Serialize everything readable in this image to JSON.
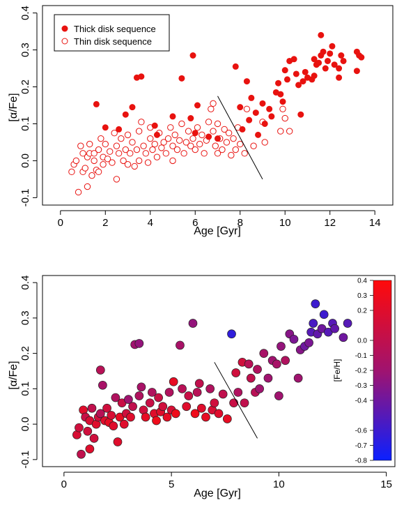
{
  "chart_data": [
    {
      "type": "scatter",
      "xlabel": "Age [Gyr]",
      "ylabel": "[α/Fe]",
      "xlim": [
        -0.8,
        14.8
      ],
      "ylim": [
        -0.12,
        0.42
      ],
      "xticks": [
        0,
        2,
        4,
        6,
        8,
        10,
        12,
        14
      ],
      "yticks": [
        -0.1,
        0.0,
        0.1,
        0.2,
        0.3,
        0.4
      ],
      "legend": {
        "placement": "top-left",
        "entries": [
          "Thick disk sequence",
          "Thin disk sequence"
        ]
      },
      "divider_line": {
        "x": [
          7.0,
          9.0
        ],
        "y": [
          0.175,
          -0.05
        ]
      },
      "series": [
        {
          "name": "Thick disk sequence",
          "marker": "filled-circle",
          "color": "#e8120f",
          "points": [
            [
              1.6,
              0.153
            ],
            [
              2.0,
              0.09
            ],
            [
              2.6,
              0.085
            ],
            [
              2.9,
              0.125
            ],
            [
              3.2,
              0.145
            ],
            [
              3.4,
              0.225
            ],
            [
              3.6,
              0.228
            ],
            [
              4.2,
              0.095
            ],
            [
              4.3,
              0.07
            ],
            [
              5.0,
              0.12
            ],
            [
              5.4,
              0.223
            ],
            [
              5.9,
              0.285
            ],
            [
              5.8,
              0.115
            ],
            [
              6.0,
              0.075
            ],
            [
              6.1,
              0.15
            ],
            [
              6.6,
              0.065
            ],
            [
              7.0,
              0.06
            ],
            [
              7.8,
              0.255
            ],
            [
              8.0,
              0.145
            ],
            [
              8.1,
              0.085
            ],
            [
              8.3,
              0.215
            ],
            [
              8.4,
              0.11
            ],
            [
              8.5,
              0.17
            ],
            [
              8.7,
              0.13
            ],
            [
              8.8,
              0.07
            ],
            [
              9.0,
              0.155
            ],
            [
              9.1,
              0.1
            ],
            [
              9.3,
              0.14
            ],
            [
              9.4,
              0.12
            ],
            [
              9.6,
              0.185
            ],
            [
              9.8,
              0.18
            ],
            [
              9.7,
              0.21
            ],
            [
              9.9,
              0.16
            ],
            [
              10.0,
              0.245
            ],
            [
              10.1,
              0.22
            ],
            [
              10.2,
              0.27
            ],
            [
              10.4,
              0.275
            ],
            [
              10.5,
              0.235
            ],
            [
              10.6,
              0.205
            ],
            [
              10.7,
              0.125
            ],
            [
              10.8,
              0.215
            ],
            [
              10.9,
              0.24
            ],
            [
              11.0,
              0.225
            ],
            [
              11.2,
              0.22
            ],
            [
              11.3,
              0.23
            ],
            [
              11.4,
              0.26
            ],
            [
              11.5,
              0.265
            ],
            [
              11.6,
              0.285
            ],
            [
              11.7,
              0.295
            ],
            [
              11.8,
              0.25
            ],
            [
              11.9,
              0.27
            ],
            [
              12.0,
              0.29
            ],
            [
              12.1,
              0.31
            ],
            [
              12.2,
              0.26
            ],
            [
              12.4,
              0.25
            ],
            [
              12.5,
              0.285
            ],
            [
              11.6,
              0.34
            ],
            [
              12.4,
              0.225
            ],
            [
              13.2,
              0.295
            ],
            [
              13.3,
              0.285
            ],
            [
              13.4,
              0.28
            ],
            [
              13.2,
              0.243
            ],
            [
              11.3,
              0.275
            ],
            [
              12.6,
              0.27
            ]
          ]
        },
        {
          "name": "Thin disk sequence",
          "marker": "open-circle",
          "color": "#e8120f",
          "points": [
            [
              0.5,
              -0.03
            ],
            [
              0.6,
              -0.01
            ],
            [
              0.7,
              0.0
            ],
            [
              0.8,
              -0.085
            ],
            [
              0.9,
              0.04
            ],
            [
              1.0,
              0.02
            ],
            [
              1.0,
              -0.03
            ],
            [
              1.1,
              -0.02
            ],
            [
              1.2,
              0.01
            ],
            [
              1.2,
              -0.07
            ],
            [
              1.3,
              0.045
            ],
            [
              1.3,
              0.02
            ],
            [
              1.4,
              -0.04
            ],
            [
              1.5,
              0.0
            ],
            [
              1.5,
              0.02
            ],
            [
              1.6,
              -0.025
            ],
            [
              1.7,
              0.03
            ],
            [
              1.7,
              -0.03
            ],
            [
              1.8,
              0.06
            ],
            [
              1.9,
              0.01
            ],
            [
              1.9,
              -0.01
            ],
            [
              2.0,
              0.045
            ],
            [
              2.1,
              0.005
            ],
            [
              2.2,
              0.025
            ],
            [
              2.3,
              -0.005
            ],
            [
              2.4,
              0.075
            ],
            [
              2.5,
              0.04
            ],
            [
              2.5,
              -0.05
            ],
            [
              2.6,
              0.02
            ],
            [
              2.7,
              0.06
            ],
            [
              2.8,
              0.0
            ],
            [
              2.9,
              0.03
            ],
            [
              3.0,
              -0.01
            ],
            [
              3.0,
              0.07
            ],
            [
              3.1,
              0.02
            ],
            [
              3.2,
              0.05
            ],
            [
              3.3,
              -0.015
            ],
            [
              3.4,
              0.03
            ],
            [
              3.5,
              0.08
            ],
            [
              3.5,
              0.0
            ],
            [
              3.6,
              0.105
            ],
            [
              3.7,
              0.04
            ],
            [
              3.8,
              0.02
            ],
            [
              3.9,
              -0.005
            ],
            [
              4.0,
              0.06
            ],
            [
              4.0,
              0.09
            ],
            [
              4.1,
              0.03
            ],
            [
              4.2,
              0.045
            ],
            [
              4.3,
              0.01
            ],
            [
              4.4,
              0.075
            ],
            [
              4.5,
              0.035
            ],
            [
              4.6,
              0.05
            ],
            [
              4.7,
              0.02
            ],
            [
              4.8,
              0.06
            ],
            [
              4.9,
              0.09
            ],
            [
              5.0,
              0.04
            ],
            [
              5.0,
              0.0
            ],
            [
              5.1,
              0.07
            ],
            [
              5.2,
              0.03
            ],
            [
              5.3,
              0.055
            ],
            [
              5.4,
              0.1
            ],
            [
              5.5,
              0.02
            ],
            [
              5.6,
              0.05
            ],
            [
              5.7,
              0.08
            ],
            [
              5.8,
              0.04
            ],
            [
              5.9,
              0.06
            ],
            [
              6.0,
              0.03
            ],
            [
              6.1,
              0.09
            ],
            [
              6.2,
              0.045
            ],
            [
              6.3,
              0.07
            ],
            [
              6.4,
              0.02
            ],
            [
              6.5,
              0.055
            ],
            [
              6.6,
              0.105
            ],
            [
              6.7,
              0.14
            ],
            [
              6.8,
              0.155
            ],
            [
              6.8,
              0.08
            ],
            [
              6.9,
              0.04
            ],
            [
              7.0,
              0.1
            ],
            [
              7.0,
              0.02
            ],
            [
              7.1,
              0.06
            ],
            [
              7.2,
              0.03
            ],
            [
              7.3,
              0.085
            ],
            [
              7.4,
              0.05
            ],
            [
              7.5,
              0.075
            ],
            [
              7.6,
              0.015
            ],
            [
              7.7,
              0.06
            ],
            [
              7.8,
              0.03
            ],
            [
              7.9,
              0.09
            ],
            [
              8.0,
              0.045
            ],
            [
              8.2,
              0.02
            ],
            [
              8.3,
              0.14
            ],
            [
              8.6,
              0.04
            ],
            [
              9.0,
              0.105
            ],
            [
              9.1,
              0.05
            ],
            [
              9.8,
              0.08
            ],
            [
              10.0,
              0.115
            ],
            [
              10.2,
              0.08
            ],
            [
              9.9,
              0.14
            ]
          ]
        }
      ]
    },
    {
      "type": "scatter",
      "xlabel": "Age [Gyr]",
      "ylabel": "[α/Fe]",
      "xlim": [
        -1.0,
        15.4
      ],
      "ylim": [
        -0.12,
        0.42
      ],
      "xticks": [
        0,
        5,
        10,
        15
      ],
      "yticks": [
        -0.1,
        0.0,
        0.1,
        0.2,
        0.3,
        0.4
      ],
      "divider_line": {
        "x": [
          7.0,
          9.0
        ],
        "y": [
          0.175,
          -0.04
        ]
      },
      "colorbar": {
        "label": "[Fe/H]",
        "range": [
          -0.8,
          0.4
        ],
        "ticks": [
          "0.4",
          "0.3",
          "0.2",
          "0.0",
          "-0.1",
          "-0.2",
          "-0.3",
          "-0.4",
          "-0.6",
          "-0.7",
          "-0.8"
        ],
        "tick_values": [
          0.4,
          0.3,
          0.2,
          0.0,
          -0.1,
          -0.2,
          -0.3,
          -0.4,
          -0.6,
          -0.7,
          -0.8
        ],
        "color_low": "#0b20ff",
        "color_high": "#ff0a0a"
      },
      "points": [
        [
          0.6,
          -0.03,
          0.15
        ],
        [
          0.7,
          -0.01,
          0.1
        ],
        [
          0.8,
          -0.085,
          0.0
        ],
        [
          0.9,
          0.04,
          0.2
        ],
        [
          1.0,
          0.02,
          0.05
        ],
        [
          1.1,
          -0.02,
          0.1
        ],
        [
          1.2,
          0.01,
          0.15
        ],
        [
          1.2,
          -0.07,
          0.2
        ],
        [
          1.3,
          0.045,
          0.0
        ],
        [
          1.4,
          -0.04,
          0.1
        ],
        [
          1.5,
          0.0,
          0.2
        ],
        [
          1.6,
          0.02,
          0.1
        ],
        [
          1.7,
          0.03,
          -0.05
        ],
        [
          1.7,
          0.153,
          -0.05
        ],
        [
          1.8,
          0.11,
          -0.15
        ],
        [
          1.9,
          0.01,
          0.2
        ],
        [
          2.0,
          0.045,
          0.1
        ],
        [
          2.1,
          0.005,
          0.25
        ],
        [
          2.2,
          0.025,
          0.15
        ],
        [
          2.3,
          -0.005,
          0.2
        ],
        [
          2.4,
          0.075,
          -0.1
        ],
        [
          2.5,
          -0.05,
          0.2
        ],
        [
          2.6,
          0.02,
          0.25
        ],
        [
          2.7,
          0.06,
          0.05
        ],
        [
          2.8,
          0.0,
          0.2
        ],
        [
          2.9,
          0.03,
          0.1
        ],
        [
          3.0,
          0.07,
          -0.2
        ],
        [
          3.1,
          0.02,
          0.2
        ],
        [
          3.2,
          0.05,
          0.0
        ],
        [
          3.3,
          0.225,
          -0.2
        ],
        [
          3.5,
          0.228,
          -0.25
        ],
        [
          3.5,
          0.08,
          -0.1
        ],
        [
          3.6,
          0.105,
          -0.15
        ],
        [
          3.7,
          0.04,
          0.1
        ],
        [
          3.8,
          0.02,
          0.25
        ],
        [
          4.0,
          0.06,
          0.05
        ],
        [
          4.1,
          0.09,
          -0.1
        ],
        [
          4.2,
          0.03,
          0.2
        ],
        [
          4.3,
          0.01,
          0.3
        ],
        [
          4.4,
          0.075,
          0.05
        ],
        [
          4.5,
          0.035,
          0.2
        ],
        [
          4.6,
          0.05,
          0.1
        ],
        [
          4.8,
          0.02,
          0.25
        ],
        [
          4.9,
          0.09,
          -0.1
        ],
        [
          5.0,
          0.04,
          0.15
        ],
        [
          5.1,
          0.12,
          0.25
        ],
        [
          5.2,
          0.03,
          0.3
        ],
        [
          5.4,
          0.223,
          -0.15
        ],
        [
          5.5,
          0.1,
          -0.05
        ],
        [
          5.7,
          0.05,
          0.2
        ],
        [
          5.8,
          0.08,
          0.05
        ],
        [
          6.0,
          0.285,
          -0.25
        ],
        [
          6.1,
          0.03,
          0.3
        ],
        [
          6.2,
          0.09,
          -0.05
        ],
        [
          6.3,
          0.115,
          0.0
        ],
        [
          6.4,
          0.045,
          0.2
        ],
        [
          6.6,
          0.02,
          0.25
        ],
        [
          6.8,
          0.1,
          -0.1
        ],
        [
          6.9,
          0.04,
          0.15
        ],
        [
          7.0,
          0.06,
          0.1
        ],
        [
          7.2,
          0.03,
          0.2
        ],
        [
          7.4,
          0.085,
          0.0
        ],
        [
          7.6,
          0.015,
          0.25
        ],
        [
          7.8,
          0.255,
          -0.65
        ],
        [
          7.9,
          0.06,
          0.05
        ],
        [
          8.0,
          0.145,
          0.1
        ],
        [
          8.1,
          0.09,
          -0.1
        ],
        [
          8.3,
          0.175,
          0.1
        ],
        [
          8.4,
          0.06,
          0.0
        ],
        [
          8.6,
          0.17,
          -0.05
        ],
        [
          8.7,
          0.13,
          0.0
        ],
        [
          8.9,
          0.09,
          -0.05
        ],
        [
          9.0,
          0.155,
          -0.1
        ],
        [
          9.1,
          0.1,
          -0.2
        ],
        [
          9.3,
          0.2,
          -0.15
        ],
        [
          9.5,
          0.13,
          -0.2
        ],
        [
          9.7,
          0.18,
          -0.2
        ],
        [
          9.9,
          0.17,
          -0.15
        ],
        [
          10.0,
          0.08,
          -0.2
        ],
        [
          10.1,
          0.22,
          -0.25
        ],
        [
          10.3,
          0.18,
          -0.1
        ],
        [
          10.5,
          0.255,
          -0.3
        ],
        [
          10.7,
          0.24,
          -0.35
        ],
        [
          10.9,
          0.13,
          -0.2
        ],
        [
          11.0,
          0.21,
          -0.3
        ],
        [
          11.2,
          0.22,
          -0.4
        ],
        [
          11.4,
          0.23,
          -0.35
        ],
        [
          11.5,
          0.26,
          -0.5
        ],
        [
          11.6,
          0.285,
          -0.55
        ],
        [
          11.7,
          0.34,
          -0.6
        ],
        [
          11.8,
          0.255,
          -0.45
        ],
        [
          12.0,
          0.27,
          -0.4
        ],
        [
          12.1,
          0.31,
          -0.6
        ],
        [
          12.3,
          0.26,
          -0.5
        ],
        [
          12.5,
          0.285,
          -0.5
        ],
        [
          13.0,
          0.245,
          -0.4
        ],
        [
          13.2,
          0.285,
          -0.5
        ],
        [
          12.6,
          0.27,
          -0.45
        ]
      ]
    }
  ]
}
